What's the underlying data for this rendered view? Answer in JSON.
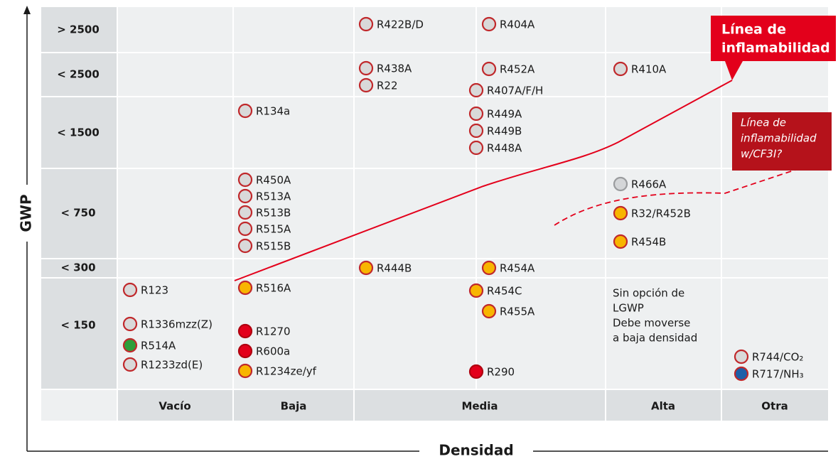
{
  "axes": {
    "y": "GWP",
    "x": "Densidad"
  },
  "rows": [
    "> 2500",
    "< 2500",
    "< 1500",
    "< 750",
    "< 300",
    "< 150"
  ],
  "columns": [
    "Vacío",
    "Baja",
    "Media",
    "Alta",
    "Otra"
  ],
  "items": [
    {
      "label": "R422B/D",
      "fill": "#d9d9d9"
    },
    {
      "label": "R404A",
      "fill": "#d9d9d9"
    },
    {
      "label": "R438A",
      "fill": "#d9d9d9"
    },
    {
      "label": "R22",
      "fill": "#d9d9d9"
    },
    {
      "label": "R452A",
      "fill": "#d9d9d9"
    },
    {
      "label": "R407A/F/H",
      "fill": "#d9d9d9"
    },
    {
      "label": "R410A",
      "fill": "#d9d9d9"
    },
    {
      "label": "R134a",
      "fill": "#d9d9d9"
    },
    {
      "label": "R449A",
      "fill": "#d9d9d9"
    },
    {
      "label": "R449B",
      "fill": "#d9d9d9"
    },
    {
      "label": "R448A",
      "fill": "#d9d9d9"
    },
    {
      "label": "R450A",
      "fill": "#d9d9d9"
    },
    {
      "label": "R513A",
      "fill": "#d9d9d9"
    },
    {
      "label": "R513B",
      "fill": "#d9d9d9"
    },
    {
      "label": "R515A",
      "fill": "#d9d9d9"
    },
    {
      "label": "R515B",
      "fill": "#d9d9d9"
    },
    {
      "label": "R466A",
      "fill": "#d4d6d8",
      "stroke": "#9a9c9e"
    },
    {
      "label": "R32/R452B",
      "fill": "#f8b500"
    },
    {
      "label": "R454B",
      "fill": "#f8b500"
    },
    {
      "label": "R444B",
      "fill": "#f8b500"
    },
    {
      "label": "R454A",
      "fill": "#f8b500"
    },
    {
      "label": "R123",
      "fill": "#d9d9d9"
    },
    {
      "label": "R516A",
      "fill": "#f8b500"
    },
    {
      "label": "R454C",
      "fill": "#f8b500"
    },
    {
      "label": "R455A",
      "fill": "#f8b500"
    },
    {
      "label": "R1336mzz(Z)",
      "fill": "#d9d9d9"
    },
    {
      "label": "R514A",
      "fill": "#2e9e3a"
    },
    {
      "label": "R1233zd(E)",
      "fill": "#d9d9d9"
    },
    {
      "label": "R1270",
      "fill": "#e3001b"
    },
    {
      "label": "R600a",
      "fill": "#e3001b"
    },
    {
      "label": "R1234ze/yf",
      "fill": "#f8b500"
    },
    {
      "label": "R290",
      "fill": "#e3001b"
    },
    {
      "label": "R744/CO₂",
      "fill": "#d9d9d9"
    },
    {
      "label": "R717/NH₃",
      "fill": "#1f5fa8"
    }
  ],
  "note": [
    "Sin opción de",
    "LGWP",
    "Debe moverse",
    "a baja densidad"
  ],
  "callouts": [
    {
      "lines": [
        "Línea de",
        "inflamabilidad"
      ]
    },
    {
      "lines": [
        "Línea de",
        "inflamabilidad",
        "w/CF3I?"
      ]
    }
  ]
}
